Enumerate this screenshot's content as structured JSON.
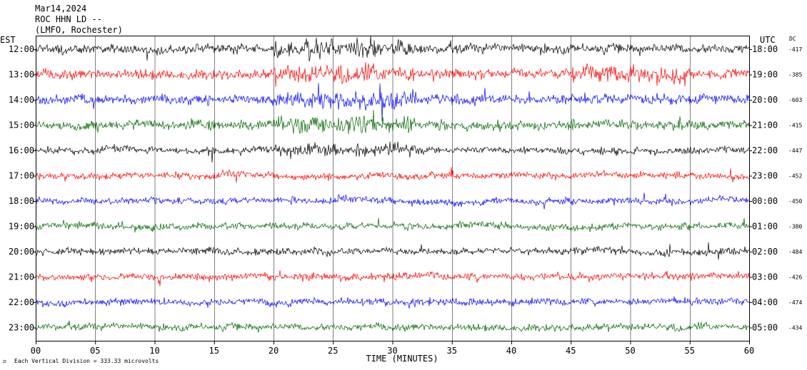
{
  "header": {
    "date": "Mar14,2024",
    "station": "ROC HHN LD --",
    "location": "(LMFO, Rochester)"
  },
  "footer": {
    "scale_note": "Each Vertical Division =  333.33 microvolts"
  },
  "chart_data": {
    "type": "line",
    "title": "",
    "xlabel": "TIME (MINUTES)",
    "ylabel_left": "EST",
    "ylabel_right": "UTC",
    "dc_label": "DC",
    "xlim": [
      0,
      60
    ],
    "x_ticks": [
      "00",
      "05",
      "10",
      "15",
      "20",
      "25",
      "30",
      "35",
      "40",
      "45",
      "50",
      "55",
      "60"
    ],
    "grid": true,
    "trace_colors": [
      "#000000",
      "#ff0000",
      "#0000ff",
      "#006400"
    ],
    "rows": [
      {
        "est": "12:00",
        "utc": "18:00",
        "dc": "-417"
      },
      {
        "est": "13:00",
        "utc": "19:00",
        "dc": "-385"
      },
      {
        "est": "14:00",
        "utc": "20:00",
        "dc": "-603"
      },
      {
        "est": "15:00",
        "utc": "21:00",
        "dc": "-415"
      },
      {
        "est": "16:00",
        "utc": "22:00",
        "dc": "-447"
      },
      {
        "est": "17:00",
        "utc": "23:00",
        "dc": "-452"
      },
      {
        "est": "18:00",
        "utc": "00:00",
        "dc": "-450"
      },
      {
        "est": "19:00",
        "utc": "01:00",
        "dc": "-380"
      },
      {
        "est": "20:00",
        "utc": "02:00",
        "dc": "-484"
      },
      {
        "est": "21:00",
        "utc": "03:00",
        "dc": "-426"
      },
      {
        "est": "22:00",
        "utc": "04:00",
        "dc": "-474"
      },
      {
        "est": "23:00",
        "utc": "05:00",
        "dc": "-434"
      }
    ]
  }
}
